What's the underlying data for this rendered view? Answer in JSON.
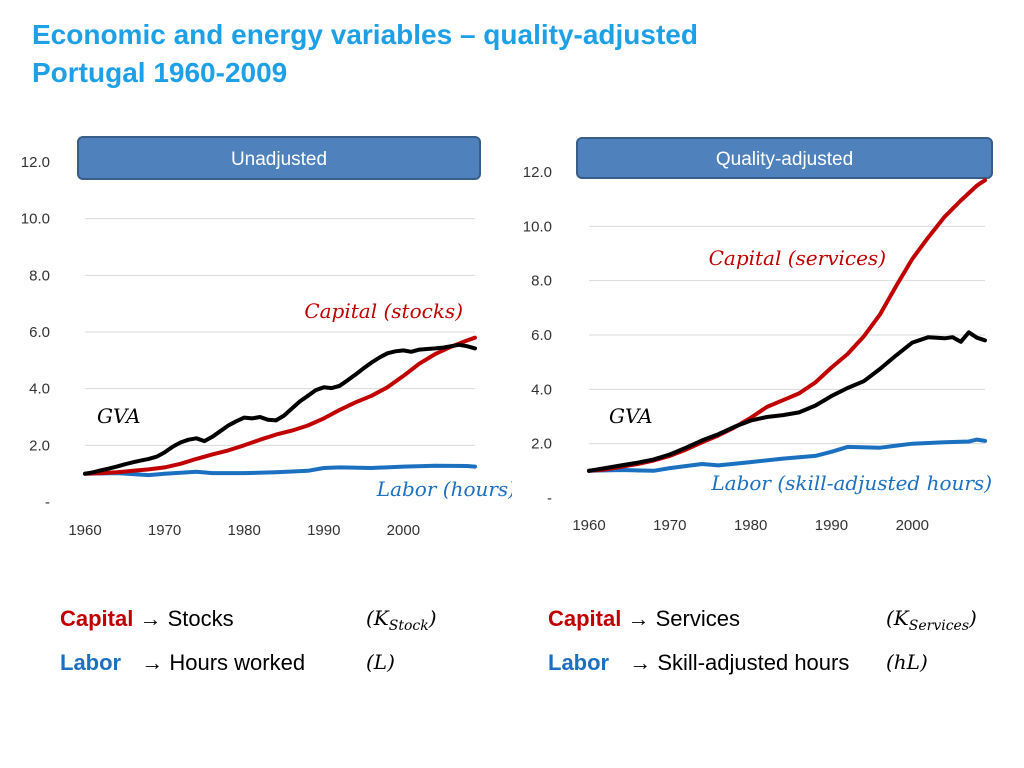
{
  "title": {
    "line1": "Economic and energy variables – quality-adjusted",
    "line2": "Portugal 1960-2009"
  },
  "colors": {
    "capital": "#c00000",
    "gva": "#000000",
    "labor": "#1c70c0",
    "title": "#1ea0e6",
    "panel": "#4f81bd"
  },
  "chart_data": [
    {
      "type": "line",
      "panel_label": "Unadjusted",
      "xlim": [
        1960,
        2009
      ],
      "ylim": [
        0,
        12
      ],
      "x_ticks": [
        "1960",
        "1970",
        "1980",
        "1990",
        "2000"
      ],
      "y_ticks": [
        "-",
        "2.0",
        "4.0",
        "6.0",
        "8.0",
        "10.0",
        "12.0"
      ],
      "annotations": {
        "capital": "Capital (stocks)",
        "gva": "GVA",
        "labor": "Labor (hours)"
      },
      "series": [
        {
          "name": "Capital (stocks)",
          "color": "#c00000",
          "x": [
            1960,
            1962,
            1964,
            1966,
            1968,
            1970,
            1972,
            1974,
            1976,
            1978,
            1980,
            1982,
            1984,
            1986,
            1988,
            1990,
            1992,
            1994,
            1996,
            1998,
            2000,
            2002,
            2004,
            2006,
            2008,
            2009
          ],
          "y": [
            1.0,
            1.02,
            1.05,
            1.1,
            1.15,
            1.22,
            1.35,
            1.52,
            1.68,
            1.82,
            2.0,
            2.2,
            2.38,
            2.52,
            2.7,
            2.95,
            3.25,
            3.52,
            3.75,
            4.05,
            4.45,
            4.88,
            5.22,
            5.48,
            5.7,
            5.8
          ]
        },
        {
          "name": "GVA",
          "color": "#000000",
          "x": [
            1960,
            1961,
            1962,
            1963,
            1964,
            1965,
            1966,
            1967,
            1968,
            1969,
            1970,
            1971,
            1972,
            1973,
            1974,
            1975,
            1976,
            1977,
            1978,
            1979,
            1980,
            1981,
            1982,
            1983,
            1984,
            1985,
            1986,
            1987,
            1988,
            1989,
            1990,
            1991,
            1992,
            1993,
            1994,
            1995,
            1996,
            1997,
            1998,
            1999,
            2000,
            2001,
            2002,
            2003,
            2004,
            2005,
            2006,
            2007,
            2008,
            2009
          ],
          "y": [
            1.0,
            1.05,
            1.12,
            1.18,
            1.25,
            1.33,
            1.4,
            1.46,
            1.52,
            1.6,
            1.75,
            1.95,
            2.1,
            2.2,
            2.25,
            2.15,
            2.3,
            2.5,
            2.7,
            2.85,
            2.98,
            2.95,
            3.0,
            2.9,
            2.88,
            3.05,
            3.3,
            3.55,
            3.75,
            3.95,
            4.05,
            4.02,
            4.1,
            4.3,
            4.5,
            4.72,
            4.92,
            5.1,
            5.25,
            5.32,
            5.35,
            5.3,
            5.38,
            5.4,
            5.42,
            5.45,
            5.5,
            5.55,
            5.5,
            5.42
          ]
        },
        {
          "name": "Labor (hours)",
          "color": "#1c70c0",
          "x": [
            1960,
            1964,
            1968,
            1970,
            1974,
            1976,
            1980,
            1984,
            1988,
            1990,
            1992,
            1996,
            2000,
            2004,
            2008,
            2009
          ],
          "y": [
            1.0,
            1.02,
            0.95,
            1.0,
            1.07,
            1.02,
            1.02,
            1.05,
            1.1,
            1.2,
            1.22,
            1.2,
            1.25,
            1.28,
            1.27,
            1.25
          ]
        }
      ]
    },
    {
      "type": "line",
      "panel_label": "Quality-adjusted",
      "xlim": [
        1960,
        2009
      ],
      "ylim": [
        0,
        12
      ],
      "x_ticks": [
        "1960",
        "1970",
        "1980",
        "1990",
        "2000"
      ],
      "y_ticks": [
        "-",
        "2.0",
        "4.0",
        "6.0",
        "8.0",
        "10.0",
        "12.0"
      ],
      "annotations": {
        "capital": "Capital (services)",
        "gva": "GVA",
        "labor": "Labor (skill-adjusted hours)"
      },
      "series": [
        {
          "name": "Capital (services)",
          "color": "#c00000",
          "x": [
            1960,
            1962,
            1964,
            1966,
            1968,
            1970,
            1972,
            1974,
            1976,
            1978,
            1980,
            1982,
            1984,
            1986,
            1988,
            1990,
            1992,
            1994,
            1996,
            1998,
            2000,
            2002,
            2004,
            2006,
            2008,
            2009
          ],
          "y": [
            1.0,
            1.05,
            1.15,
            1.25,
            1.38,
            1.55,
            1.78,
            2.05,
            2.3,
            2.6,
            2.95,
            3.35,
            3.6,
            3.85,
            4.25,
            4.8,
            5.3,
            5.95,
            6.75,
            7.8,
            8.8,
            9.6,
            10.35,
            10.95,
            11.5,
            11.7
          ]
        },
        {
          "name": "GVA",
          "color": "#000000",
          "x": [
            1960,
            1962,
            1964,
            1966,
            1968,
            1970,
            1972,
            1974,
            1976,
            1978,
            1980,
            1982,
            1984,
            1986,
            1988,
            1990,
            1992,
            1994,
            1996,
            1998,
            2000,
            2002,
            2004,
            2005,
            2006,
            2007,
            2008,
            2009
          ],
          "y": [
            1.0,
            1.1,
            1.2,
            1.3,
            1.42,
            1.6,
            1.85,
            2.12,
            2.35,
            2.62,
            2.85,
            2.98,
            3.05,
            3.15,
            3.4,
            3.75,
            4.05,
            4.3,
            4.75,
            5.25,
            5.72,
            5.92,
            5.88,
            5.92,
            5.75,
            6.1,
            5.9,
            5.8
          ]
        },
        {
          "name": "Labor (skill-adjusted hours)",
          "color": "#1c70c0",
          "x": [
            1960,
            1964,
            1968,
            1970,
            1974,
            1976,
            1980,
            1984,
            1988,
            1990,
            1992,
            1996,
            2000,
            2004,
            2007,
            2008,
            2009
          ],
          "y": [
            1.0,
            1.03,
            1.0,
            1.1,
            1.25,
            1.2,
            1.32,
            1.45,
            1.55,
            1.7,
            1.88,
            1.85,
            2.0,
            2.05,
            2.08,
            2.15,
            2.1
          ]
        }
      ]
    }
  ],
  "legend": {
    "left": {
      "capital_word": "Capital",
      "capital_text": "→ Stocks",
      "capital_symbol_main": "(K",
      "capital_symbol_sub": "Stock",
      "capital_symbol_close": ")",
      "labor_word": "Labor",
      "labor_text": "→ Hours worked",
      "labor_symbol": "(L)"
    },
    "right": {
      "capital_word": "Capital",
      "capital_text": "→ Services",
      "capital_symbol_main": "(K",
      "capital_symbol_sub": "Services",
      "capital_symbol_close": ")",
      "labor_word": "Labor",
      "labor_text": "→ Skill-adjusted hours",
      "labor_symbol": "(hL)"
    }
  }
}
